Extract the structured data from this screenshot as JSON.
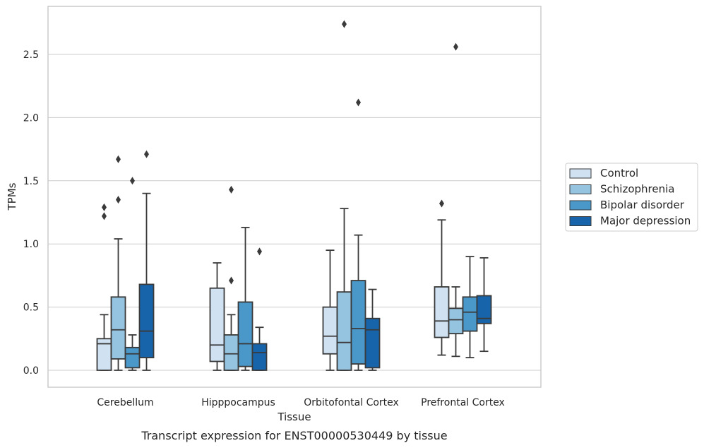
{
  "caption": "Transcript expression for ENST00000530449 by tissue",
  "colors": {
    "Control": "#d0e1f2",
    "Schizophrenia": "#94c4df",
    "Bipolar disorder": "#4a98c9",
    "Major depression": "#1764ab",
    "grid": "#cccccc",
    "frame": "#cccccc",
    "line": "#3a3a3a"
  },
  "chart_data": {
    "type": "box",
    "xlabel": "Tissue",
    "ylabel": "TPMs",
    "ylim": [
      -0.13,
      2.88
    ],
    "yticks": [
      0.0,
      0.5,
      1.0,
      1.5,
      2.0,
      2.5
    ],
    "ytick_labels": [
      "0.0",
      "0.5",
      "1.0",
      "1.5",
      "2.0",
      "2.5"
    ],
    "categories": [
      "Cerebellum",
      "Hipppocampus",
      "Orbitofontal Cortex",
      "Prefrontal Cortex"
    ],
    "grid": "horizontal",
    "legend_position": "right",
    "series": [
      {
        "name": "Control",
        "boxes": [
          {
            "whislo": 0.0,
            "q1": 0.0,
            "med": 0.21,
            "q3": 0.25,
            "whishi": 0.44,
            "fliers": [
              1.22,
              1.29
            ]
          },
          {
            "whislo": 0.0,
            "q1": 0.07,
            "med": 0.2,
            "q3": 0.65,
            "whishi": 0.85,
            "fliers": []
          },
          {
            "whislo": 0.0,
            "q1": 0.13,
            "med": 0.27,
            "q3": 0.5,
            "whishi": 0.95,
            "fliers": []
          },
          {
            "whislo": 0.12,
            "q1": 0.26,
            "med": 0.39,
            "q3": 0.66,
            "whishi": 1.19,
            "fliers": [
              1.32
            ]
          }
        ]
      },
      {
        "name": "Schizophrenia",
        "boxes": [
          {
            "whislo": 0.0,
            "q1": 0.09,
            "med": 0.32,
            "q3": 0.58,
            "whishi": 1.04,
            "fliers": [
              1.35,
              1.67
            ]
          },
          {
            "whislo": 0.0,
            "q1": 0.0,
            "med": 0.13,
            "q3": 0.28,
            "whishi": 0.44,
            "fliers": [
              0.71,
              1.43
            ]
          },
          {
            "whislo": 0.0,
            "q1": 0.0,
            "med": 0.22,
            "q3": 0.62,
            "whishi": 1.28,
            "fliers": [
              2.74
            ]
          },
          {
            "whislo": 0.11,
            "q1": 0.29,
            "med": 0.4,
            "q3": 0.49,
            "whishi": 0.66,
            "fliers": [
              2.56
            ]
          }
        ]
      },
      {
        "name": "Bipolar disorder",
        "boxes": [
          {
            "whislo": 0.0,
            "q1": 0.02,
            "med": 0.13,
            "q3": 0.18,
            "whishi": 0.28,
            "fliers": [
              1.5
            ]
          },
          {
            "whislo": 0.0,
            "q1": 0.03,
            "med": 0.21,
            "q3": 0.54,
            "whishi": 1.13,
            "fliers": []
          },
          {
            "whislo": 0.0,
            "q1": 0.05,
            "med": 0.33,
            "q3": 0.71,
            "whishi": 1.07,
            "fliers": [
              2.12
            ]
          },
          {
            "whislo": 0.1,
            "q1": 0.31,
            "med": 0.46,
            "q3": 0.58,
            "whishi": 0.9,
            "fliers": []
          }
        ]
      },
      {
        "name": "Major depression",
        "boxes": [
          {
            "whislo": 0.0,
            "q1": 0.1,
            "med": 0.31,
            "q3": 0.68,
            "whishi": 1.4,
            "fliers": [
              1.71
            ]
          },
          {
            "whislo": 0.0,
            "q1": 0.0,
            "med": 0.14,
            "q3": 0.21,
            "whishi": 0.34,
            "fliers": [
              0.94
            ]
          },
          {
            "whislo": 0.0,
            "q1": 0.02,
            "med": 0.32,
            "q3": 0.41,
            "whishi": 0.64,
            "fliers": []
          },
          {
            "whislo": 0.15,
            "q1": 0.37,
            "med": 0.41,
            "q3": 0.59,
            "whishi": 0.89,
            "fliers": []
          }
        ]
      }
    ]
  }
}
